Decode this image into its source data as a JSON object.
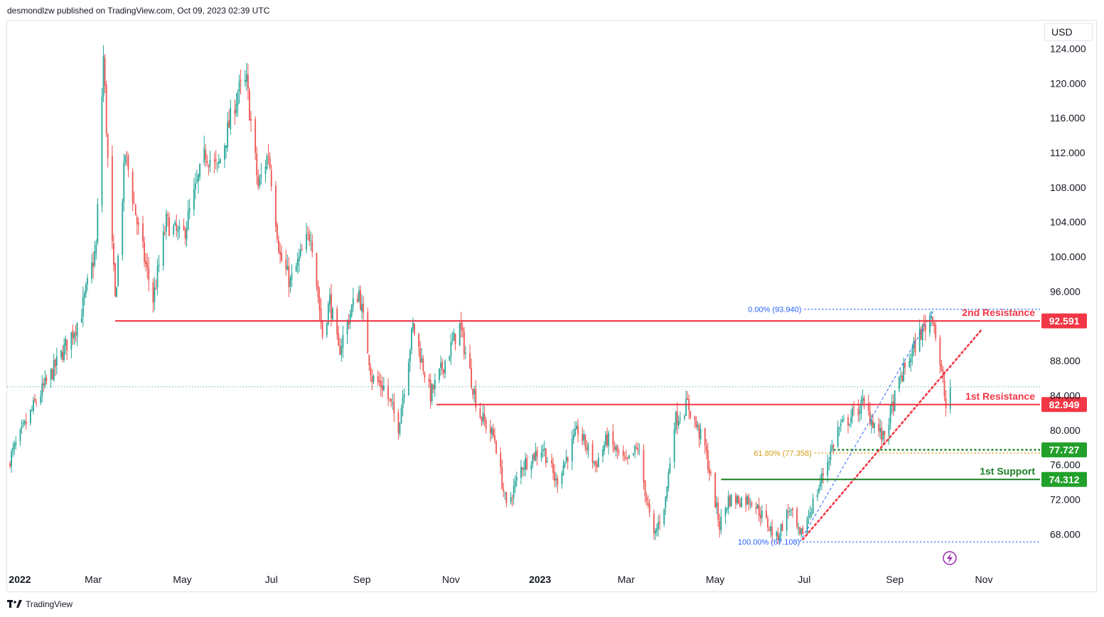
{
  "header": {
    "published": "desmondlzw published on TradingView.com, Oct 09, 2023 02:39 UTC"
  },
  "currency": "USD",
  "footer": {
    "brand": "TradingView",
    "logo_icon": "tradingview-logo-icon"
  },
  "colors": {
    "up": "#26a69a",
    "down": "#ef5350",
    "resistance": "#f23645",
    "support": "#22a02a",
    "support_dark": "#1b7f24",
    "fib": "#2962ff",
    "fib_gold": "#d4a017",
    "trend": "#f23645",
    "grid_text": "#131722",
    "lightning": "#9c27b0"
  },
  "chart_data": {
    "type": "candlestick",
    "symbol_units": "USD",
    "ylim": [
      64.0,
      126.0
    ],
    "y_ticks": [
      "124.000",
      "120.000",
      "116.000",
      "112.000",
      "108.000",
      "104.000",
      "100.000",
      "96.000",
      "88.000",
      "84.000",
      "80.000",
      "76.000",
      "72.000",
      "68.000"
    ],
    "y_tick_values": [
      124,
      120,
      116,
      112,
      108,
      104,
      100,
      96,
      88,
      84,
      80,
      76,
      72,
      68
    ],
    "x_ticks": [
      {
        "label": "2022",
        "date": "2022-01-01",
        "bold": true
      },
      {
        "label": "Mar",
        "date": "2022-03-01"
      },
      {
        "label": "May",
        "date": "2022-05-01"
      },
      {
        "label": "Jul",
        "date": "2022-07-01"
      },
      {
        "label": "Sep",
        "date": "2022-09-01"
      },
      {
        "label": "Nov",
        "date": "2022-11-01"
      },
      {
        "label": "2023",
        "date": "2023-01-01",
        "bold": true
      },
      {
        "label": "Mar",
        "date": "2023-03-01"
      },
      {
        "label": "May",
        "date": "2023-05-01"
      },
      {
        "label": "Jul",
        "date": "2023-07-01"
      },
      {
        "label": "Sep",
        "date": "2023-09-01"
      },
      {
        "label": "Nov",
        "date": "2023-11-01"
      }
    ],
    "price_path": [
      [
        "2022-01-01",
        76.0
      ],
      [
        "2022-01-20",
        83.0
      ],
      [
        "2022-02-05",
        88.0
      ],
      [
        "2022-02-20",
        93.0
      ],
      [
        "2022-03-03",
        101.0
      ],
      [
        "2022-03-08",
        123.0
      ],
      [
        "2022-03-12",
        107.0
      ],
      [
        "2022-03-16",
        95.0
      ],
      [
        "2022-03-23",
        112.0
      ],
      [
        "2022-04-01",
        103.0
      ],
      [
        "2022-04-11",
        95.0
      ],
      [
        "2022-04-20",
        104.0
      ],
      [
        "2022-05-01",
        102.0
      ],
      [
        "2022-05-17",
        112.0
      ],
      [
        "2022-05-25",
        110.0
      ],
      [
        "2022-06-08",
        119.0
      ],
      [
        "2022-06-14",
        120.0
      ],
      [
        "2022-06-22",
        108.0
      ],
      [
        "2022-06-29",
        112.0
      ],
      [
        "2022-07-07",
        100.0
      ],
      [
        "2022-07-14",
        97.0
      ],
      [
        "2022-07-28",
        103.0
      ],
      [
        "2022-08-05",
        91.0
      ],
      [
        "2022-08-10",
        95.0
      ],
      [
        "2022-08-16",
        89.0
      ],
      [
        "2022-08-25",
        94.0
      ],
      [
        "2022-08-30",
        96.0
      ],
      [
        "2022-09-08",
        86.0
      ],
      [
        "2022-09-16",
        85.0
      ],
      [
        "2022-09-26",
        80.5
      ],
      [
        "2022-10-06",
        92.0
      ],
      [
        "2022-10-18",
        84.0
      ],
      [
        "2022-11-07",
        92.0
      ],
      [
        "2022-11-20",
        82.0
      ],
      [
        "2022-12-01",
        79.0
      ],
      [
        "2022-12-09",
        71.0
      ],
      [
        "2022-12-20",
        76.0
      ],
      [
        "2023-01-03",
        78.0
      ],
      [
        "2023-01-12",
        74.0
      ],
      [
        "2023-01-27",
        80.0
      ],
      [
        "2023-02-08",
        76.0
      ],
      [
        "2023-02-16",
        79.0
      ],
      [
        "2023-03-01",
        76.0
      ],
      [
        "2023-03-09",
        78.0
      ],
      [
        "2023-03-17",
        70.0
      ],
      [
        "2023-03-20",
        67.5
      ],
      [
        "2023-03-28",
        72.0
      ],
      [
        "2023-04-03",
        81.0
      ],
      [
        "2023-04-12",
        83.0
      ],
      [
        "2023-04-24",
        78.0
      ],
      [
        "2023-05-04",
        69.0
      ],
      [
        "2023-05-10",
        72.0
      ],
      [
        "2023-05-26",
        72.0
      ],
      [
        "2023-06-12",
        67.5
      ],
      [
        "2023-06-21",
        71.0
      ],
      [
        "2023-06-28",
        67.5
      ],
      [
        "2023-07-10",
        73.0
      ],
      [
        "2023-07-24",
        80.0
      ],
      [
        "2023-08-10",
        83.0
      ],
      [
        "2023-08-24",
        79.0
      ],
      [
        "2023-09-05",
        86.0
      ],
      [
        "2023-09-18",
        91.0
      ],
      [
        "2023-09-27",
        93.5
      ],
      [
        "2023-10-05",
        84.0
      ],
      [
        "2023-10-06",
        82.5
      ],
      [
        "2023-10-09",
        85.0
      ]
    ],
    "levels": [
      {
        "label": "2nd Resistance",
        "value": 92.591,
        "value_text": "92.591",
        "kind": "resistance",
        "from": "2022-03-16"
      },
      {
        "label": "1st Resistance",
        "value": 82.949,
        "value_text": "82.949",
        "kind": "resistance",
        "from": "2022-10-22"
      },
      {
        "label": "",
        "value": 77.727,
        "value_text": "77.727",
        "kind": "support_dotted",
        "from": "2023-07-21"
      },
      {
        "label": "1st Support",
        "value": 74.312,
        "value_text": "74.312",
        "kind": "support",
        "from": "2023-05-05"
      }
    ],
    "fibonacci": {
      "anchor_from": "2023-06-28",
      "anchor_to": "2023-09-28",
      "levels": [
        {
          "label": "0.00% (93.940)",
          "value": 93.94,
          "color": "fib"
        },
        {
          "label": "61.80% (77.358)",
          "value": 77.358,
          "color": "fib_gold"
        },
        {
          "label": "100.00% (67.108)",
          "value": 67.108,
          "color": "fib"
        }
      ]
    },
    "trendline": {
      "from": [
        "2023-06-30",
        67.4
      ],
      "to": [
        "2023-10-30",
        91.5
      ]
    },
    "current_price": 85.0,
    "last_date": "2023-10-09"
  }
}
